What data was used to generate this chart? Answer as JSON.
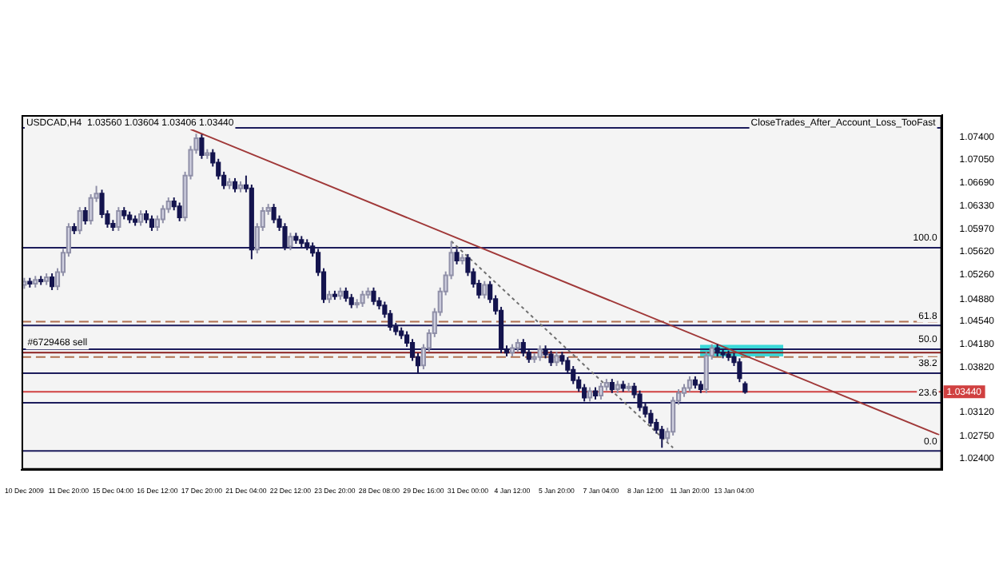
{
  "chart_data": {
    "type": "candlestick",
    "title": "USDCAD,H4  1.03560 1.03604 1.03406 1.03440",
    "annotations": [
      "CloseTrades_After_Account_Loss_TooFast",
      {
        "text": "#6729468 sell",
        "x": "10 Dec 2009",
        "y": 1.0405
      },
      {
        "text": "100.0",
        "y": 1.0568
      },
      {
        "text": "61.8",
        "y": 1.0447
      },
      {
        "text": "50.0",
        "y": 1.041
      },
      {
        "text": "38.2",
        "y": 1.0373
      },
      {
        "text": "23.6",
        "y": 1.0327
      },
      {
        "text": "0.0",
        "y": 1.0252
      }
    ],
    "categories": [
      "10 Dec 2009",
      null,
      null,
      null,
      null,
      null,
      null,
      null,
      "11 Dec 20:00",
      null,
      null,
      null,
      null,
      null,
      null,
      null,
      "15 Dec 04:00",
      null,
      null,
      null,
      null,
      null,
      null,
      null,
      "16 Dec 12:00",
      null,
      null,
      null,
      null,
      null,
      null,
      null,
      "17 Dec 20:00",
      null,
      null,
      null,
      null,
      null,
      null,
      null,
      "21 Dec 04:00",
      null,
      null,
      null,
      null,
      null,
      null,
      null,
      "22 Dec 12:00",
      null,
      null,
      null,
      null,
      null,
      null,
      null,
      "23 Dec 20:00",
      null,
      null,
      null,
      null,
      null,
      null,
      null,
      "28 Dec 08:00",
      null,
      null,
      null,
      null,
      null,
      null,
      null,
      "29 Dec 16:00",
      null,
      null,
      null,
      null,
      null,
      null,
      null,
      "31 Dec 00:00",
      null,
      null,
      null,
      null,
      null,
      null,
      null,
      "4 Jan 12:00",
      null,
      null,
      null,
      null,
      null,
      null,
      null,
      "5 Jan 20:00",
      null,
      null,
      null,
      null,
      null,
      null,
      null,
      "7 Jan 04:00",
      null,
      null,
      null,
      null,
      null,
      null,
      null,
      "8 Jan 12:00",
      null,
      null,
      null,
      null,
      null,
      null,
      null,
      "11 Jan 20:00",
      null,
      null,
      null,
      null,
      null,
      null,
      null,
      "13 Jan 04:00",
      null,
      null,
      null,
      null,
      null,
      null,
      null,
      null,
      null,
      null,
      null,
      null,
      null,
      null,
      null,
      null,
      null,
      null,
      null,
      null,
      null,
      null,
      null,
      null,
      null,
      null,
      null,
      null,
      null,
      null,
      null,
      null,
      null,
      null,
      null,
      null,
      null
    ],
    "ohlc": [
      [
        1.051,
        1.0521,
        1.0504,
        1.0515
      ],
      [
        1.0515,
        1.0521,
        1.0506,
        1.0512
      ],
      [
        1.0512,
        1.0524,
        1.0506,
        1.0518
      ],
      [
        1.0518,
        1.0524,
        1.051,
        1.0516
      ],
      [
        1.0516,
        1.0528,
        1.051,
        1.0522
      ],
      [
        1.0522,
        1.0528,
        1.0502,
        1.0508
      ],
      [
        1.0508,
        1.0536,
        1.0502,
        1.053
      ],
      [
        1.053,
        1.0566,
        1.0524,
        1.056
      ],
      [
        1.056,
        1.0606,
        1.0554,
        1.06
      ],
      [
        1.06,
        1.0606,
        1.0589,
        1.0595
      ],
      [
        1.0595,
        1.0631,
        1.0589,
        1.0625
      ],
      [
        1.0625,
        1.0631,
        1.0604,
        1.061
      ],
      [
        1.061,
        1.0651,
        1.0604,
        1.0645
      ],
      [
        1.0645,
        1.0664,
        1.0639,
        1.0652
      ],
      [
        1.0652,
        1.0658,
        1.0614,
        1.062
      ],
      [
        1.062,
        1.0626,
        1.0599,
        1.0605
      ],
      [
        1.0605,
        1.0611,
        1.0594,
        1.06
      ],
      [
        1.06,
        1.0631,
        1.0594,
        1.0625
      ],
      [
        1.0625,
        1.0631,
        1.0612,
        1.0618
      ],
      [
        1.0618,
        1.0624,
        1.0606,
        1.0612
      ],
      [
        1.0612,
        1.0618,
        1.0602,
        1.0608
      ],
      [
        1.0608,
        1.0626,
        1.0602,
        1.062
      ],
      [
        1.062,
        1.0626,
        1.0606,
        1.0612
      ],
      [
        1.0612,
        1.0618,
        1.0594,
        1.06
      ],
      [
        1.06,
        1.0618,
        1.0594,
        1.0612
      ],
      [
        1.0612,
        1.0634,
        1.0606,
        1.0628
      ],
      [
        1.0628,
        1.0646,
        1.0622,
        1.064
      ],
      [
        1.064,
        1.0646,
        1.0626,
        1.0632
      ],
      [
        1.0632,
        1.0638,
        1.0609,
        1.0615
      ],
      [
        1.0615,
        1.0686,
        1.0609,
        1.068
      ],
      [
        1.068,
        1.0726,
        1.0674,
        1.072
      ],
      [
        1.072,
        1.0745,
        1.0714,
        1.0738
      ],
      [
        1.0738,
        1.0744,
        1.0706,
        1.0712
      ],
      [
        1.0712,
        1.0721,
        1.0706,
        1.0715
      ],
      [
        1.0715,
        1.0721,
        1.0694,
        1.07
      ],
      [
        1.07,
        1.0706,
        1.0674,
        1.068
      ],
      [
        1.068,
        1.0686,
        1.0659,
        1.0665
      ],
      [
        1.0665,
        1.0676,
        1.0659,
        1.067
      ],
      [
        1.067,
        1.0676,
        1.0654,
        1.066
      ],
      [
        1.066,
        1.0671,
        1.0654,
        1.0665
      ],
      [
        1.0665,
        1.068,
        1.0654,
        1.066
      ],
      [
        1.066,
        1.0666,
        1.055,
        1.0565
      ],
      [
        1.0565,
        1.0606,
        1.0559,
        1.06
      ],
      [
        1.06,
        1.0631,
        1.0594,
        1.0625
      ],
      [
        1.0625,
        1.0636,
        1.0619,
        1.063
      ],
      [
        1.063,
        1.0636,
        1.0606,
        1.0612
      ],
      [
        1.0612,
        1.0618,
        1.0594,
        1.06
      ],
      [
        1.06,
        1.0606,
        1.0564,
        1.057
      ],
      [
        1.057,
        1.0591,
        1.0564,
        1.0585
      ],
      [
        1.0585,
        1.0591,
        1.0574,
        1.058
      ],
      [
        1.058,
        1.0586,
        1.0569,
        1.0575
      ],
      [
        1.0575,
        1.0581,
        1.0564,
        1.057
      ],
      [
        1.057,
        1.0576,
        1.0554,
        1.056
      ],
      [
        1.056,
        1.0566,
        1.0524,
        1.053
      ],
      [
        1.053,
        1.0536,
        1.0482,
        1.0488
      ],
      [
        1.0488,
        1.0501,
        1.0482,
        1.0495
      ],
      [
        1.0495,
        1.0501,
        1.0487,
        1.0493
      ],
      [
        1.0493,
        1.0506,
        1.0487,
        1.05
      ],
      [
        1.05,
        1.0506,
        1.0484,
        1.049
      ],
      [
        1.049,
        1.0496,
        1.0474,
        1.048
      ],
      [
        1.048,
        1.0488,
        1.0474,
        1.0482
      ],
      [
        1.0482,
        1.0501,
        1.0476,
        1.0495
      ],
      [
        1.0495,
        1.0506,
        1.0489,
        1.05
      ],
      [
        1.05,
        1.0506,
        1.0479,
        1.0485
      ],
      [
        1.0485,
        1.0491,
        1.0472,
        1.0478
      ],
      [
        1.0478,
        1.0484,
        1.0459,
        1.0465
      ],
      [
        1.0465,
        1.0471,
        1.0439,
        1.0445
      ],
      [
        1.0445,
        1.0451,
        1.0432,
        1.0438
      ],
      [
        1.0438,
        1.0444,
        1.0426,
        1.0432
      ],
      [
        1.0432,
        1.0438,
        1.0414,
        1.042
      ],
      [
        1.042,
        1.0426,
        1.0392,
        1.0398
      ],
      [
        1.0398,
        1.0404,
        1.0372,
        1.0385
      ],
      [
        1.0385,
        1.0418,
        1.0379,
        1.0412
      ],
      [
        1.0412,
        1.0441,
        1.0406,
        1.0435
      ],
      [
        1.0435,
        1.0474,
        1.0429,
        1.0468
      ],
      [
        1.0468,
        1.0506,
        1.0462,
        1.05
      ],
      [
        1.05,
        1.0531,
        1.0494,
        1.0525
      ],
      [
        1.0525,
        1.0578,
        1.0519,
        1.056
      ],
      [
        1.056,
        1.0566,
        1.0542,
        1.0548
      ],
      [
        1.0548,
        1.0558,
        1.0542,
        1.0552
      ],
      [
        1.0552,
        1.0558,
        1.0524,
        1.053
      ],
      [
        1.053,
        1.0536,
        1.0506,
        1.0512
      ],
      [
        1.0512,
        1.0518,
        1.0489,
        1.0495
      ],
      [
        1.0495,
        1.0516,
        1.0489,
        1.051
      ],
      [
        1.051,
        1.0516,
        1.0482,
        1.0488
      ],
      [
        1.0488,
        1.0494,
        1.0464,
        1.047
      ],
      [
        1.047,
        1.0476,
        1.0404,
        1.041
      ],
      [
        1.041,
        1.0416,
        1.0399,
        1.0405
      ],
      [
        1.0405,
        1.0418,
        1.0399,
        1.0412
      ],
      [
        1.0412,
        1.0426,
        1.0406,
        1.042
      ],
      [
        1.042,
        1.0426,
        1.0399,
        1.0405
      ],
      [
        1.0405,
        1.0411,
        1.0389,
        1.0395
      ],
      [
        1.0395,
        1.0404,
        1.0389,
        1.0398
      ],
      [
        1.0398,
        1.0416,
        1.0392,
        1.041
      ],
      [
        1.041,
        1.0416,
        1.0396,
        1.0402
      ],
      [
        1.0402,
        1.0408,
        1.0384,
        1.039
      ],
      [
        1.039,
        1.0406,
        1.0384,
        1.04
      ],
      [
        1.04,
        1.0406,
        1.0386,
        1.0392
      ],
      [
        1.0392,
        1.0398,
        1.0372,
        1.0378
      ],
      [
        1.0378,
        1.0384,
        1.0356,
        1.0362
      ],
      [
        1.0362,
        1.0368,
        1.0344,
        1.035
      ],
      [
        1.035,
        1.0356,
        1.0329,
        1.0335
      ],
      [
        1.0335,
        1.0351,
        1.0329,
        1.0345
      ],
      [
        1.0345,
        1.0351,
        1.0332,
        1.0338
      ],
      [
        1.0338,
        1.0358,
        1.0332,
        1.0352
      ],
      [
        1.0352,
        1.0364,
        1.0346,
        1.0358
      ],
      [
        1.0358,
        1.0364,
        1.0342,
        1.0348
      ],
      [
        1.0348,
        1.0361,
        1.0342,
        1.0355
      ],
      [
        1.0355,
        1.0361,
        1.0344,
        1.035
      ],
      [
        1.035,
        1.0358,
        1.0344,
        1.0352
      ],
      [
        1.0352,
        1.0358,
        1.0334,
        1.034
      ],
      [
        1.034,
        1.0346,
        1.0314,
        1.032
      ],
      [
        1.032,
        1.0326,
        1.0304,
        1.031
      ],
      [
        1.031,
        1.0316,
        1.029,
        1.0296
      ],
      [
        1.0296,
        1.0302,
        1.0279,
        1.0285
      ],
      [
        1.0285,
        1.0291,
        1.0257,
        1.0272
      ],
      [
        1.0272,
        1.0288,
        1.0266,
        1.0282
      ],
      [
        1.0282,
        1.0336,
        1.0276,
        1.033
      ],
      [
        1.033,
        1.0348,
        1.0324,
        1.0342
      ],
      [
        1.0342,
        1.0356,
        1.0336,
        1.035
      ],
      [
        1.035,
        1.0368,
        1.0344,
        1.0362
      ],
      [
        1.0362,
        1.0368,
        1.0349,
        1.0355
      ],
      [
        1.0355,
        1.0361,
        1.0342,
        1.0348
      ],
      [
        1.0348,
        1.0406,
        1.0342,
        1.04
      ],
      [
        1.04,
        1.0418,
        1.0394,
        1.0412
      ],
      [
        1.0412,
        1.0418,
        1.0399,
        1.0405
      ],
      [
        1.0405,
        1.0411,
        1.0396,
        1.0402
      ],
      [
        1.0402,
        1.0408,
        1.0392,
        1.0398
      ],
      [
        1.0398,
        1.0404,
        1.0384,
        1.039
      ],
      [
        1.039,
        1.0396,
        1.0359,
        1.0365
      ],
      [
        1.0356,
        1.036,
        1.0341,
        1.0344
      ],
      null,
      null,
      null,
      null,
      null,
      null,
      null,
      null,
      null,
      null,
      null,
      null,
      null,
      null,
      null,
      null,
      null,
      null,
      null,
      null,
      null,
      null,
      null,
      null,
      null,
      null,
      null,
      null,
      null,
      null,
      null,
      null,
      null,
      null,
      null
    ],
    "colors": [
      "#d0d0e0",
      "#14144e",
      "#d0d0e0",
      "#14144e",
      "#d0d0e0",
      "#14144e",
      "#d0d0e0",
      "#d0d0e0",
      "#d0d0e0",
      "#14144e",
      "#d0d0e0",
      "#14144e",
      "#d0d0e0",
      "#d0d0e0",
      "#14144e",
      "#14144e",
      "#14144e",
      "#d0d0e0",
      "#14144e",
      "#14144e",
      "#14144e",
      "#d0d0e0",
      "#14144e",
      "#14144e",
      "#d0d0e0",
      "#d0d0e0",
      "#d0d0e0",
      "#14144e",
      "#14144e",
      "#d0d0e0",
      "#d0d0e0",
      "#d0d0e0",
      "#14144e",
      "#d0d0e0",
      "#14144e",
      "#14144e",
      "#14144e",
      "#d0d0e0",
      "#14144e",
      "#d0d0e0",
      "#14144e",
      "#14144e",
      "#d0d0e0",
      "#d0d0e0",
      "#d0d0e0",
      "#14144e",
      "#14144e",
      "#14144e",
      "#d0d0e0",
      "#14144e",
      "#14144e",
      "#14144e",
      "#14144e",
      "#14144e",
      "#14144e",
      "#d0d0e0",
      "#14144e",
      "#d0d0e0",
      "#14144e",
      "#14144e",
      "#d0d0e0",
      "#d0d0e0",
      "#d0d0e0",
      "#14144e",
      "#14144e",
      "#14144e",
      "#14144e",
      "#14144e",
      "#14144e",
      "#14144e",
      "#14144e",
      "#14144e",
      "#d0d0e0",
      "#d0d0e0",
      "#d0d0e0",
      "#d0d0e0",
      "#d0d0e0",
      "#d0d0e0",
      "#14144e",
      "#d0d0e0",
      "#14144e",
      "#14144e",
      "#14144e",
      "#d0d0e0",
      "#14144e",
      "#14144e",
      "#14144e",
      "#14144e",
      "#d0d0e0",
      "#d0d0e0",
      "#14144e",
      "#14144e",
      "#d0d0e0",
      "#d0d0e0",
      "#14144e",
      "#14144e",
      "#d0d0e0",
      "#14144e",
      "#14144e",
      "#14144e",
      "#14144e",
      "#14144e",
      "#d0d0e0",
      "#14144e",
      "#d0d0e0",
      "#d0d0e0",
      "#14144e",
      "#d0d0e0",
      "#14144e",
      "#d0d0e0",
      "#14144e",
      "#14144e",
      "#14144e",
      "#14144e",
      "#14144e",
      "#14144e",
      "#d0d0e0",
      "#d0d0e0",
      "#d0d0e0",
      "#d0d0e0",
      "#d0d0e0",
      "#14144e",
      "#14144e",
      "#d0d0e0",
      "#d0d0e0",
      "#14144e",
      "#14144e",
      "#14144e",
      "#14144e",
      "#14144e",
      "#14144e",
      null,
      null,
      null,
      null,
      null,
      null,
      null,
      null,
      null,
      null,
      null,
      null,
      null,
      null,
      null,
      null,
      null,
      null,
      null,
      null,
      null,
      null,
      null,
      null,
      null,
      null,
      null,
      null,
      null,
      null,
      null,
      null,
      null,
      null,
      null
    ],
    "series": [
      {
        "type": "line",
        "color": "#a03838",
        "line_style": "solid",
        "values": [
          null,
          null,
          null,
          null,
          null,
          null,
          null,
          null,
          null,
          null,
          null,
          null,
          null,
          null,
          null,
          null,
          null,
          null,
          null,
          null,
          null,
          null,
          null,
          null,
          null,
          null,
          null,
          null,
          null,
          null,
          1.0752,
          null,
          null,
          null,
          null,
          null,
          null,
          null,
          null,
          null,
          null,
          null,
          null,
          null,
          null,
          null,
          null,
          null,
          null,
          null,
          null,
          null,
          null,
          null,
          null,
          null,
          null,
          null,
          null,
          null,
          null,
          null,
          null,
          null,
          null,
          null,
          null,
          null,
          null,
          null,
          null,
          null,
          null,
          null,
          null,
          null,
          null,
          null,
          null,
          null,
          null,
          null,
          null,
          null,
          null,
          null,
          null,
          null,
          null,
          null,
          null,
          null,
          null,
          null,
          null,
          null,
          null,
          null,
          null,
          null,
          null,
          null,
          null,
          null,
          null,
          null,
          null,
          null,
          null,
          null,
          null,
          null,
          null,
          null,
          null,
          null,
          null,
          null,
          null,
          null,
          null,
          null,
          null,
          null,
          null,
          null,
          null,
          null,
          null,
          null,
          null,
          null,
          null,
          null,
          null,
          null,
          null,
          null,
          null,
          null,
          null,
          null,
          null,
          null,
          null,
          null,
          null,
          null,
          null,
          null,
          null,
          null,
          null,
          null,
          null,
          null,
          null,
          null,
          null,
          null,
          null,
          null,
          null,
          null,
          null,
          1.0277
        ]
      },
      {
        "type": "line",
        "color": "#707070",
        "line_style": "dotted",
        "values": [
          null,
          null,
          null,
          null,
          null,
          null,
          null,
          null,
          null,
          null,
          null,
          null,
          null,
          null,
          null,
          null,
          null,
          null,
          null,
          null,
          null,
          null,
          null,
          null,
          null,
          null,
          null,
          null,
          null,
          null,
          null,
          null,
          null,
          null,
          null,
          null,
          null,
          null,
          null,
          null,
          null,
          null,
          null,
          null,
          null,
          null,
          null,
          null,
          null,
          null,
          null,
          null,
          null,
          null,
          null,
          null,
          null,
          null,
          null,
          null,
          null,
          null,
          null,
          null,
          null,
          null,
          null,
          null,
          null,
          null,
          null,
          null,
          null,
          null,
          null,
          null,
          null,
          1.0578,
          null,
          null,
          null,
          null,
          null,
          null,
          null,
          null,
          null,
          null,
          null,
          null,
          null,
          null,
          null,
          null,
          null,
          null,
          null,
          null,
          null,
          null,
          null,
          null,
          null,
          null,
          null,
          null,
          null,
          null,
          null,
          null,
          null,
          null,
          null,
          null,
          null,
          null,
          null,
          1.0257,
          null,
          null,
          null,
          null,
          null,
          null,
          null,
          null,
          null,
          null,
          null,
          null,
          null,
          null,
          null,
          null,
          null,
          null,
          null,
          null,
          null,
          null,
          null,
          null,
          null,
          null,
          null,
          null,
          null,
          null,
          null,
          null,
          null,
          null,
          null,
          null,
          null,
          null,
          null,
          null,
          null,
          null,
          null,
          null,
          null,
          null,
          null,
          null
        ]
      }
    ],
    "ref_lines": [
      {
        "axis": "y",
        "value": 1.0754,
        "color": "#1c1c5c",
        "line_style": "solid"
      },
      {
        "axis": "y",
        "value": 1.0568,
        "color": "#1c1c5c",
        "line_style": "solid"
      },
      {
        "axis": "y",
        "value": 1.0453,
        "color": "#b07050",
        "line_style": "dashed"
      },
      {
        "axis": "y",
        "value": 1.0447,
        "color": "#1c1c5c",
        "line_style": "solid"
      },
      {
        "axis": "y",
        "value": 1.041,
        "color": "#1c1c5c",
        "line_style": "solid"
      },
      {
        "axis": "y",
        "value": 1.0405,
        "color": "#8b2020",
        "line_style": "solid"
      },
      {
        "axis": "y",
        "value": 1.0398,
        "color": "#b07050",
        "line_style": "dashed"
      },
      {
        "axis": "y",
        "value": 1.0373,
        "color": "#1c1c5c",
        "line_style": "solid"
      },
      {
        "axis": "y",
        "value": 1.0344,
        "label": "1.03440",
        "color": "#d04040",
        "line_style": "solid"
      },
      {
        "axis": "y",
        "value": 1.0327,
        "color": "#1c1c5c",
        "line_style": "solid"
      },
      {
        "axis": "y",
        "value": 1.0252,
        "color": "#1c1c5c",
        "line_style": "solid"
      }
    ],
    "bands": [
      {
        "axis": "y",
        "from": 1.0399,
        "to": 1.0417,
        "color": "#3ad8d8"
      }
    ],
    "ylim": [
      1.0223,
      1.0774
    ],
    "yticks": [
      {
        "value": 1.024,
        "label": "1.02400"
      },
      {
        "value": 1.0275,
        "label": "1.02750"
      },
      {
        "value": 1.0312,
        "label": "1.03120"
      },
      {
        "value": 1.0382,
        "label": "1.03820"
      },
      {
        "value": 1.0418,
        "label": "1.04180"
      },
      {
        "value": 1.0454,
        "label": "1.04540"
      },
      {
        "value": 1.0488,
        "label": "1.04880"
      },
      {
        "value": 1.0526,
        "label": "1.05260"
      },
      {
        "value": 1.0562,
        "label": "1.05620"
      },
      {
        "value": 1.0597,
        "label": "1.05970"
      },
      {
        "value": 1.0633,
        "label": "1.06330"
      },
      {
        "value": 1.0669,
        "label": "1.06690"
      },
      {
        "value": 1.0705,
        "label": "1.07050"
      },
      {
        "value": 1.074,
        "label": "1.07400"
      }
    ],
    "grid": false,
    "legend": false
  }
}
